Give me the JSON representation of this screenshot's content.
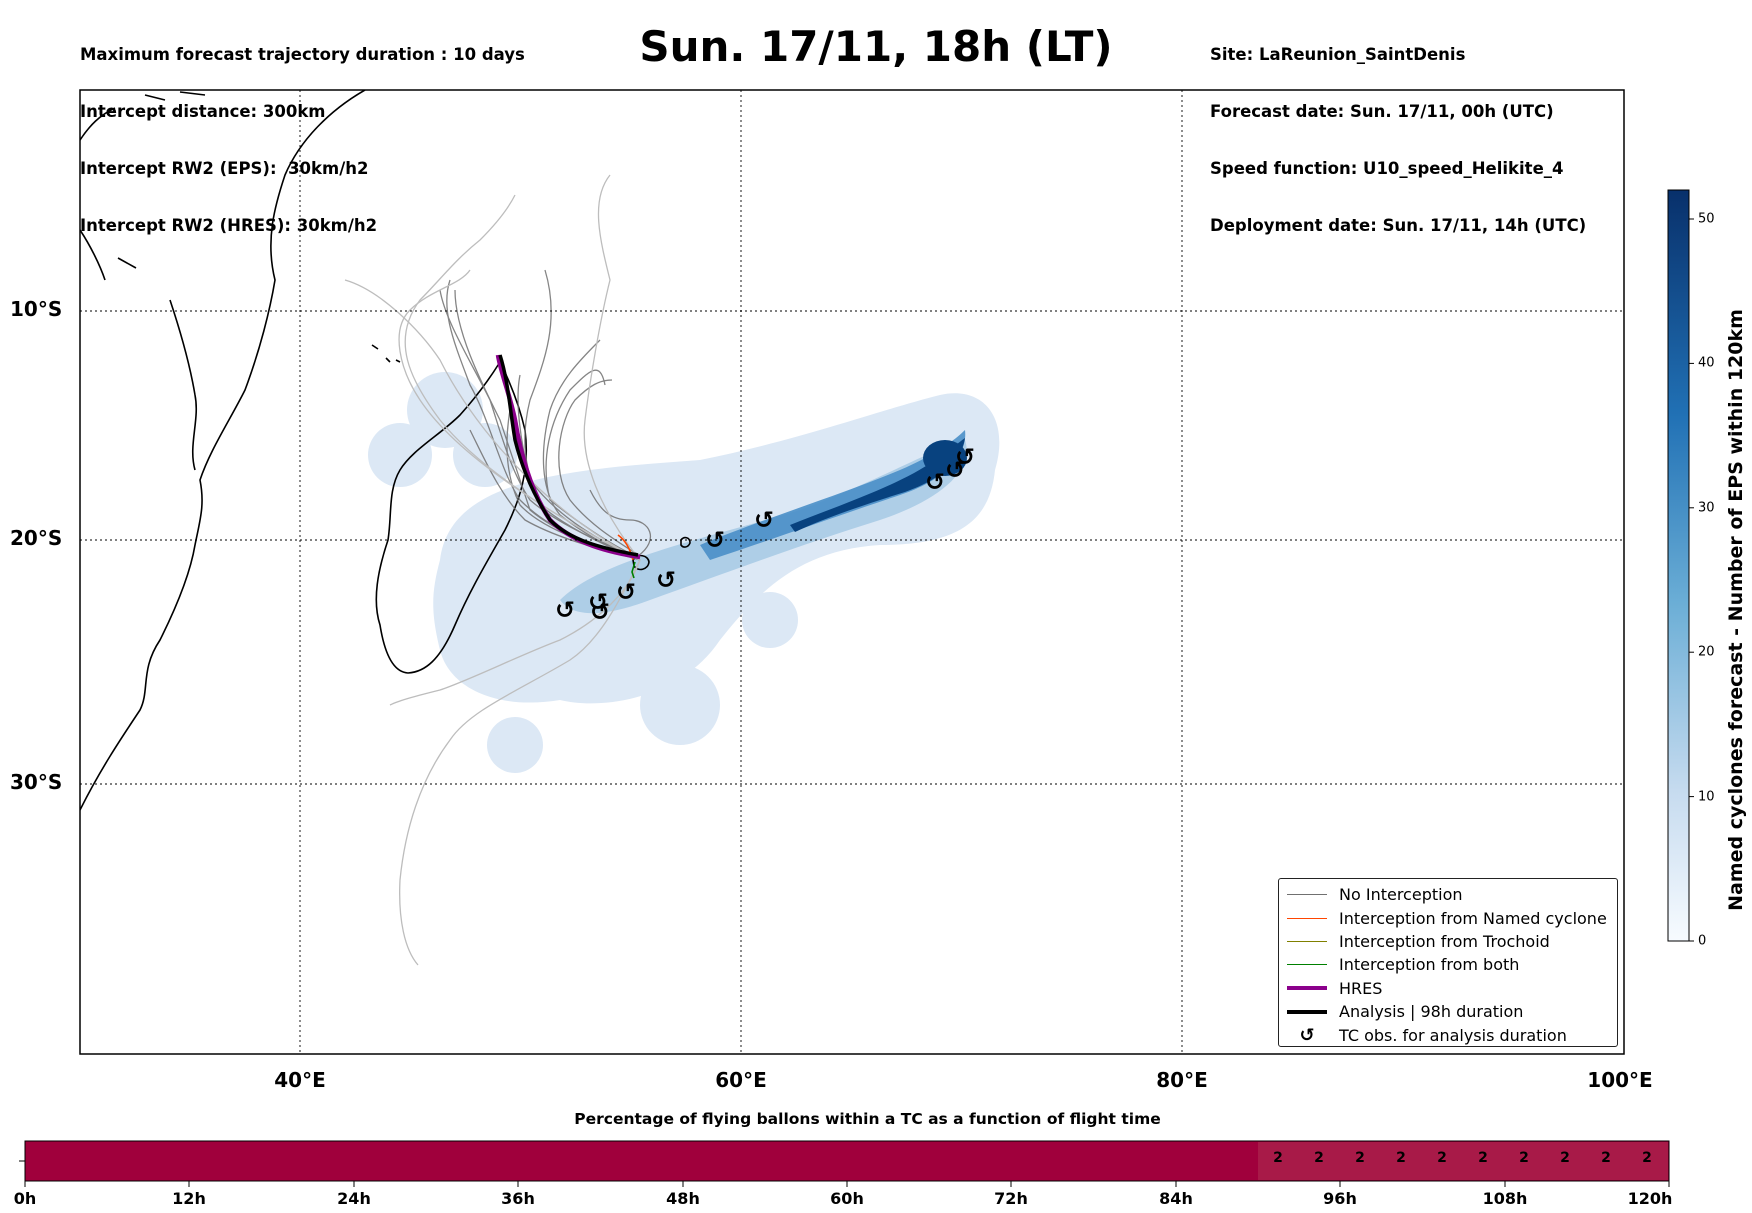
{
  "header": {
    "left_lines": [
      "Maximum forecast trajectory duration : 10 days",
      "Intercept distance: 300km",
      "Intercept RW2 (EPS):  30km/h2",
      "Intercept RW2 (HRES): 30km/h2"
    ],
    "right_lines": [
      "Site: LaReunion_SaintDenis",
      "Forecast date: Sun. 17/11, 00h (UTC)",
      "Speed function: U10_speed_Helikite_4",
      "Deployment date: Sun. 17/11, 14h (UTC)"
    ],
    "title": "Sun. 17/11, 18h (LT)"
  },
  "map": {
    "lon_range": [
      30,
      100
    ],
    "lat_range": [
      -43.5,
      0.5
    ],
    "lat_labels": [
      "10°S",
      "20°S",
      "30°S"
    ],
    "lon_labels": [
      "40°E",
      "60°E",
      "80°E",
      "100°E"
    ],
    "colors": {
      "hres": "#8b008b",
      "analysis": "#000000",
      "no_interception": "#707070",
      "named_cyclone": "#ff4500",
      "trochoid": "#808000",
      "both": "#008000",
      "density_max": "#08306b"
    }
  },
  "legend": {
    "items": [
      {
        "label": "No Interception",
        "color": "#707070",
        "kind": "line"
      },
      {
        "label": "Interception from Named cyclone",
        "color": "#ff4500",
        "kind": "line"
      },
      {
        "label": "Interception from Trochoid",
        "color": "#808000",
        "kind": "line"
      },
      {
        "label": "Interception from both",
        "color": "#008000",
        "kind": "line"
      },
      {
        "label": "HRES",
        "color": "#8b008b",
        "kind": "thick"
      },
      {
        "label": "Analysis | 98h duration",
        "color": "#000000",
        "kind": "thick"
      },
      {
        "label": "TC obs. for analysis duration",
        "color": "#000000",
        "kind": "symbol",
        "symbol": "↺"
      }
    ]
  },
  "colorbar": {
    "label": "Named cyclones forecast - Number of EPS within 120km",
    "range": [
      0,
      52
    ],
    "ticks": [
      "0",
      "10",
      "20",
      "30",
      "40",
      "50"
    ]
  },
  "bottom": {
    "title": "Percentage of flying ballons within a TC as a function of flight time",
    "ticks": [
      "0h",
      "12h",
      "24h",
      "36h",
      "48h",
      "60h",
      "72h",
      "84h",
      "96h",
      "108h",
      "120h"
    ],
    "pct_values": [
      "2",
      "2",
      "2",
      "2",
      "2",
      "2",
      "2",
      "2",
      "2",
      "2"
    ],
    "bar_color": "#a0003c"
  }
}
